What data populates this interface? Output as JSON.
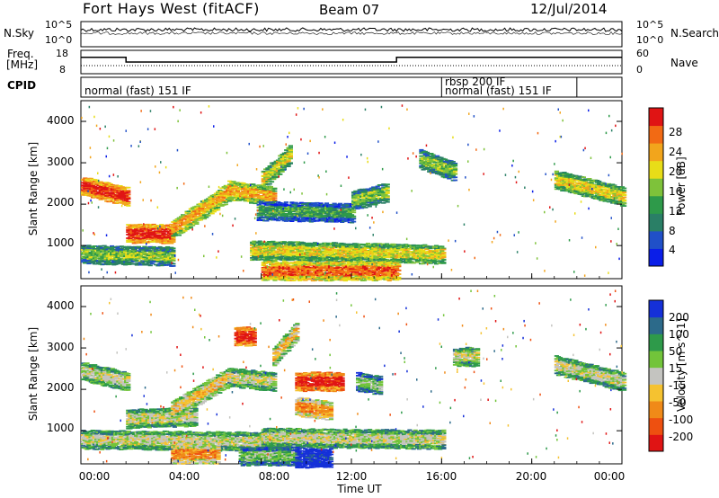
{
  "header": {
    "station": "Fort Hays West (fitACF)",
    "beam": "Beam 07",
    "date": "12/Jul/2014"
  },
  "sky_panel": {
    "left_label": "N.Sky",
    "right_label": "N.Search",
    "left_ticks": [
      "10^5",
      "10^0"
    ],
    "right_ticks": [
      "10^5",
      "10^0"
    ]
  },
  "freq_panel": {
    "left_label_1": "Freq.",
    "left_label_2": "[MHz]",
    "right_label": "Nave",
    "left_ticks": [
      "18",
      "8"
    ],
    "right_ticks": [
      "60",
      "0"
    ]
  },
  "cpid": {
    "label": "CPID",
    "modes": [
      "normal (fast) 151 IF",
      "rbsp 200 IF",
      "normal (fast) 151 IF"
    ]
  },
  "x_axis": {
    "label": "Time UT",
    "ticks": [
      "00:00",
      "04:00",
      "08:00",
      "12:00",
      "16:00",
      "20:00",
      "00:00"
    ]
  },
  "power_panel": {
    "ylabel": "Slant Range [km]",
    "yticks": [
      "1000",
      "2000",
      "3000",
      "4000"
    ],
    "colorbar_label": "Power [dB]",
    "colorbar_ticks": [
      "4",
      "8",
      "12",
      "16",
      "20",
      "24",
      "28"
    ],
    "colors": [
      "#0a1ee8",
      "#2050c8",
      "#2a7f66",
      "#2e9a4a",
      "#7ec23a",
      "#e8dd18",
      "#f2a51c",
      "#f26a14",
      "#e01414"
    ]
  },
  "velocity_panel": {
    "ylabel": "Slant Range [km]",
    "yticks": [
      "1000",
      "2000",
      "3000",
      "4000"
    ],
    "colorbar_label": "Velocity [m s^-1]",
    "colorbar_ticks": [
      "200",
      "100",
      "50",
      "15",
      "-15",
      "-50",
      "-100",
      "-200"
    ],
    "colors": [
      "#1530d8",
      "#2c6a8a",
      "#2e9a4a",
      "#72c43a",
      "#c4c4c0",
      "#f5c230",
      "#f08a18",
      "#ee5010",
      "#e01414"
    ]
  },
  "chart_data": {
    "type": "heatmap",
    "x_unit": "hours UT",
    "xlim": [
      0,
      24
    ],
    "ylim": [
      200,
      4500
    ],
    "cpid_segments": [
      {
        "label": "normal (fast) 151 IF",
        "start": 0,
        "end": 16
      },
      {
        "label": "rbsp 200 IF",
        "start": 16,
        "end": 22
      },
      {
        "label": "normal (fast) 151 IF",
        "start": 16,
        "end": 22
      }
    ],
    "freq_steps": [
      {
        "start": 0,
        "end": 2,
        "value": 15
      },
      {
        "start": 2,
        "end": 14,
        "value": 13
      },
      {
        "start": 14,
        "end": 24,
        "value": 15
      }
    ],
    "power_bands": [
      {
        "x0": 0,
        "x1": 2,
        "y_start": 2450,
        "y_end": 2200,
        "level": 8
      },
      {
        "x0": 2,
        "x1": 4,
        "y_start": 1300,
        "y_end": 1300,
        "level": 8
      },
      {
        "x0": 4,
        "x1": 6.5,
        "y_start": 1400,
        "y_end": 2300,
        "level": 6
      },
      {
        "x0": 6.5,
        "x1": 8.5,
        "y_start": 2350,
        "y_end": 2200,
        "level": 6
      },
      {
        "x0": 8,
        "x1": 9.2,
        "y_start": 2600,
        "y_end": 3200,
        "level": 5
      },
      {
        "x0": 7.8,
        "x1": 12,
        "y_start": 1850,
        "y_end": 1800,
        "level": 3
      },
      {
        "x0": 0,
        "x1": 4,
        "y_start": 800,
        "y_end": 750,
        "level": 4
      },
      {
        "x0": 7.5,
        "x1": 16,
        "y_start": 900,
        "y_end": 800,
        "level": 5
      },
      {
        "x0": 8,
        "x1": 14,
        "y_start": 400,
        "y_end": 400,
        "level": 7
      },
      {
        "x0": 12,
        "x1": 13.5,
        "y_start": 2100,
        "y_end": 2300,
        "level": 4
      },
      {
        "x0": 15,
        "x1": 16.5,
        "y_start": 3100,
        "y_end": 2800,
        "level": 4
      },
      {
        "x0": 21,
        "x1": 24,
        "y_start": 2600,
        "y_end": 2200,
        "level": 5
      }
    ],
    "velocity_bands": [
      {
        "x0": 0,
        "x1": 2,
        "y_start": 2450,
        "y_end": 2200,
        "level": 4
      },
      {
        "x0": 2,
        "x1": 5,
        "y_start": 1300,
        "y_end": 1350,
        "level": 4
      },
      {
        "x0": 4,
        "x1": 6.5,
        "y_start": 1500,
        "y_end": 2300,
        "level": 5
      },
      {
        "x0": 6.5,
        "x1": 8.5,
        "y_start": 2300,
        "y_end": 2200,
        "level": 4
      },
      {
        "x0": 6.8,
        "x1": 7.6,
        "y_start": 3300,
        "y_end": 3300,
        "level": 8
      },
      {
        "x0": 9.5,
        "x1": 11.5,
        "y_start": 2200,
        "y_end": 2200,
        "level": 8
      },
      {
        "x0": 9.5,
        "x1": 11,
        "y_start": 1600,
        "y_end": 1500,
        "level": 6
      },
      {
        "x0": 8.5,
        "x1": 9.5,
        "y_start": 2800,
        "y_end": 3400,
        "level": 5
      },
      {
        "x0": 0,
        "x1": 8,
        "y_start": 800,
        "y_end": 750,
        "level": 4
      },
      {
        "x0": 8,
        "x1": 16,
        "y_start": 850,
        "y_end": 800,
        "level": 4
      },
      {
        "x0": 4,
        "x1": 6,
        "y_start": 450,
        "y_end": 450,
        "level": 6
      },
      {
        "x0": 7,
        "x1": 9.5,
        "y_start": 400,
        "y_end": 400,
        "level": 3
      },
      {
        "x0": 9.5,
        "x1": 11,
        "y_start": 350,
        "y_end": 350,
        "level": 0
      },
      {
        "x0": 12.2,
        "x1": 13.2,
        "y_start": 2200,
        "y_end": 2100,
        "level": 3
      },
      {
        "x0": 16.5,
        "x1": 17.5,
        "y_start": 2800,
        "y_end": 2800,
        "level": 4
      },
      {
        "x0": 21,
        "x1": 24,
        "y_start": 2600,
        "y_end": 2200,
        "level": 4
      }
    ]
  }
}
